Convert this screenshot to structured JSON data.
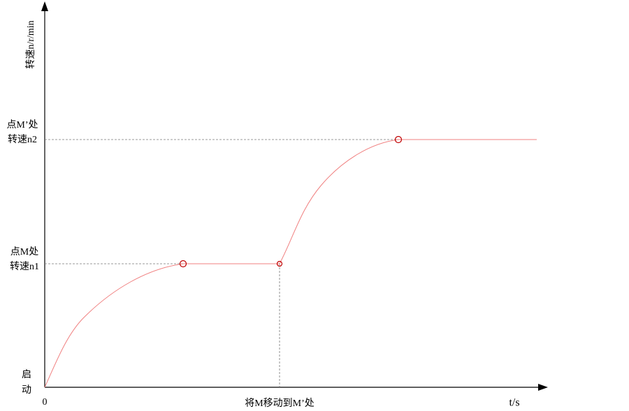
{
  "axes": {
    "y_label": "转速n/r/min",
    "x_label": "t/s",
    "origin": "0"
  },
  "levels": [
    {
      "lines": [
        "点M’处",
        "转速n2"
      ]
    },
    {
      "lines": [
        "点M处",
        "转速n1"
      ]
    }
  ],
  "start_label": [
    "启",
    "动"
  ],
  "event_label": "将M移动到M’处"
}
